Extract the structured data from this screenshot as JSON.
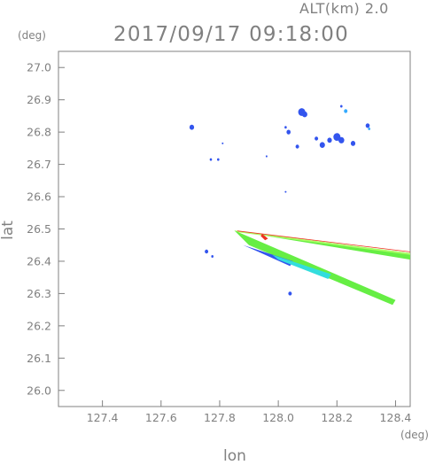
{
  "header": {
    "altitude_label": "ALT(km) 2.0",
    "timestamp": "2017/09/17 09:18:00"
  },
  "chart_data": {
    "type": "scatter",
    "title": "2017/09/17 09:18:00",
    "subtitle": "ALT(km) 2.0",
    "xlabel": "lon",
    "ylabel": "lat",
    "x_unit": "(deg)",
    "y_unit": "(deg)",
    "xlim": [
      127.25,
      128.45
    ],
    "ylim": [
      25.95,
      27.05
    ],
    "x_ticks": [
      "127.4",
      "127.6",
      "127.8",
      "128.0",
      "128.2",
      "128.4"
    ],
    "y_ticks": [
      "26.0",
      "26.1",
      "26.2",
      "26.3",
      "26.4",
      "26.5",
      "26.6",
      "26.7",
      "26.8",
      "26.9",
      "27.0"
    ],
    "grid": false,
    "colors": {
      "echo_blue": "#3355ee",
      "echo_lightblue": "#33aaff",
      "echo_cyan": "#33dddd",
      "echo_green": "#66ee44",
      "echo_lightgreen": "#aaff66",
      "echo_red": "#ee3322",
      "axis": "#808080"
    },
    "echoes": [
      {
        "lon": 127.705,
        "lat": 26.815,
        "r": 0.008,
        "color": "echo_blue"
      },
      {
        "lon": 127.77,
        "lat": 26.715,
        "r": 0.004,
        "color": "echo_blue"
      },
      {
        "lon": 127.795,
        "lat": 26.715,
        "r": 0.004,
        "color": "echo_blue"
      },
      {
        "lon": 127.81,
        "lat": 26.765,
        "r": 0.002,
        "color": "echo_blue"
      },
      {
        "lon": 127.96,
        "lat": 26.725,
        "r": 0.003,
        "color": "echo_blue"
      },
      {
        "lon": 128.035,
        "lat": 26.8,
        "r": 0.007,
        "color": "echo_blue"
      },
      {
        "lon": 128.025,
        "lat": 26.815,
        "r": 0.004,
        "color": "echo_blue"
      },
      {
        "lon": 128.065,
        "lat": 26.755,
        "r": 0.006,
        "color": "echo_blue"
      },
      {
        "lon": 128.08,
        "lat": 26.862,
        "r": 0.012,
        "color": "echo_blue"
      },
      {
        "lon": 128.09,
        "lat": 26.855,
        "r": 0.009,
        "color": "echo_blue"
      },
      {
        "lon": 128.13,
        "lat": 26.78,
        "r": 0.006,
        "color": "echo_blue"
      },
      {
        "lon": 128.15,
        "lat": 26.76,
        "r": 0.009,
        "color": "echo_blue"
      },
      {
        "lon": 128.175,
        "lat": 26.775,
        "r": 0.008,
        "color": "echo_blue"
      },
      {
        "lon": 128.2,
        "lat": 26.785,
        "r": 0.012,
        "color": "echo_blue"
      },
      {
        "lon": 128.215,
        "lat": 26.775,
        "r": 0.01,
        "color": "echo_blue"
      },
      {
        "lon": 128.215,
        "lat": 26.88,
        "r": 0.004,
        "color": "echo_blue"
      },
      {
        "lon": 128.23,
        "lat": 26.865,
        "r": 0.006,
        "color": "echo_lightblue"
      },
      {
        "lon": 128.255,
        "lat": 26.765,
        "r": 0.008,
        "color": "echo_blue"
      },
      {
        "lon": 128.305,
        "lat": 26.82,
        "r": 0.007,
        "color": "echo_blue"
      },
      {
        "lon": 128.31,
        "lat": 26.81,
        "r": 0.004,
        "color": "echo_lightblue"
      },
      {
        "lon": 128.025,
        "lat": 26.615,
        "r": 0.002,
        "color": "echo_blue"
      },
      {
        "lon": 127.755,
        "lat": 26.43,
        "r": 0.006,
        "color": "echo_blue"
      },
      {
        "lon": 127.775,
        "lat": 26.415,
        "r": 0.004,
        "color": "echo_blue"
      },
      {
        "lon": 128.04,
        "lat": 26.3,
        "r": 0.006,
        "color": "echo_blue"
      }
    ],
    "streaks": [
      {
        "points": [
          [
            127.85,
            26.495
          ],
          [
            128.45,
            26.425
          ],
          [
            128.45,
            26.405
          ],
          [
            127.88,
            26.49
          ]
        ],
        "color": "echo_green"
      },
      {
        "points": [
          [
            127.85,
            26.495
          ],
          [
            128.45,
            26.425
          ],
          [
            128.45,
            26.42
          ],
          [
            127.86,
            26.49
          ]
        ],
        "color": "echo_lightgreen"
      },
      {
        "points": [
          [
            127.85,
            26.495
          ],
          [
            128.4,
            26.28
          ],
          [
            128.39,
            26.265
          ],
          [
            127.9,
            26.45
          ]
        ],
        "color": "echo_green"
      },
      {
        "points": [
          [
            127.88,
            26.45
          ],
          [
            128.05,
            26.4
          ],
          [
            128.04,
            26.385
          ],
          [
            127.93,
            26.43
          ]
        ],
        "color": "echo_blue"
      },
      {
        "points": [
          [
            127.98,
            26.42
          ],
          [
            128.18,
            26.36
          ],
          [
            128.17,
            26.345
          ],
          [
            128.0,
            26.405
          ]
        ],
        "color": "echo_cyan"
      },
      {
        "points": [
          [
            127.945,
            26.485
          ],
          [
            127.965,
            26.47
          ],
          [
            127.955,
            26.465
          ],
          [
            127.94,
            26.478
          ]
        ],
        "color": "echo_red"
      },
      {
        "points": [
          [
            127.86,
            26.495
          ],
          [
            128.45,
            26.43
          ],
          [
            128.45,
            26.428
          ],
          [
            127.86,
            26.493
          ]
        ],
        "color": "echo_red"
      }
    ]
  }
}
